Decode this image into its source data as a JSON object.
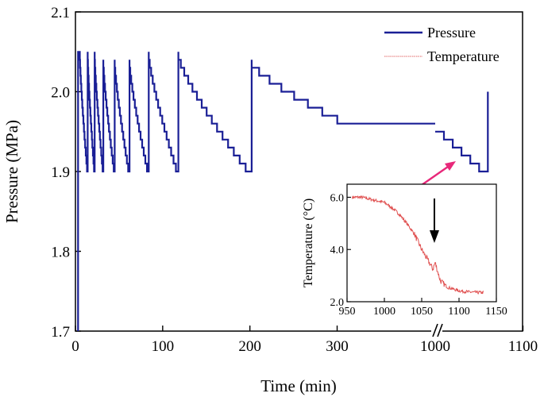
{
  "chart_data": [
    {
      "type": "line",
      "title": "",
      "xlabel": "Time (min)",
      "ylabel": "Pressure (MPa)",
      "xlim": [
        0,
        1100
      ],
      "ylim": [
        1.7,
        2.1
      ],
      "x_axis_break": "between 320 and 1000 (broken axis)",
      "x_ticks": [
        {
          "value": 0,
          "label": "0"
        },
        {
          "value": 100,
          "label": "100"
        },
        {
          "value": 200,
          "label": "200"
        },
        {
          "value": 300,
          "label": "300"
        },
        {
          "value": 1000,
          "label": "1000"
        },
        {
          "value": 1100,
          "label": "1100"
        }
      ],
      "y_ticks": [
        {
          "value": 1.7,
          "label": "1.7"
        },
        {
          "value": 1.8,
          "label": "1.8"
        },
        {
          "value": 1.9,
          "label": "1.9"
        },
        {
          "value": 2.0,
          "label": "2.0"
        },
        {
          "value": 2.1,
          "label": "2.1"
        }
      ],
      "legend": [
        {
          "label": "Pressure",
          "color": "#1a1f96",
          "style": "solid"
        },
        {
          "label": "Temperature",
          "color": "#e06060",
          "style": "dotted"
        }
      ],
      "series": [
        {
          "name": "Pressure",
          "color": "#1a1f96",
          "cycles": [
            {
              "start": 5,
              "end": 14,
              "peak": 2.05,
              "floor": 1.9
            },
            {
              "start": 14,
              "end": 22,
              "peak": 2.05,
              "floor": 1.9
            },
            {
              "start": 22,
              "end": 32,
              "peak": 2.05,
              "floor": 1.9
            },
            {
              "start": 32,
              "end": 45,
              "peak": 2.04,
              "floor": 1.9
            },
            {
              "start": 45,
              "end": 62,
              "peak": 2.04,
              "floor": 1.9
            },
            {
              "start": 62,
              "end": 84,
              "peak": 2.04,
              "floor": 1.9
            },
            {
              "start": 84,
              "end": 118,
              "peak": 2.05,
              "floor": 1.9
            },
            {
              "start": 118,
              "end": 202,
              "peak": 2.05,
              "floor": 1.9
            },
            {
              "start": 202,
              "end": 318,
              "peak": 2.04,
              "floor": 1.96
            }
          ],
          "late_segment": {
            "start": 1000,
            "end": 1060,
            "levels": [
              1.95,
              1.94,
              1.93,
              1.92,
              1.91,
              1.9
            ],
            "final_peak": 2.0
          }
        }
      ]
    },
    {
      "type": "line",
      "title": "",
      "xlabel": "",
      "ylabel": "Temperature (°C)",
      "xlim": [
        950,
        1150
      ],
      "ylim": [
        2.0,
        6.5
      ],
      "x_ticks": [
        {
          "value": 950,
          "label": "950"
        },
        {
          "value": 1000,
          "label": "1000"
        },
        {
          "value": 1050,
          "label": "1050"
        },
        {
          "value": 1100,
          "label": "1100"
        },
        {
          "value": 1150,
          "label": "1150"
        }
      ],
      "y_ticks": [
        {
          "value": 2.0,
          "label": "2.0"
        },
        {
          "value": 4.0,
          "label": "4.0"
        },
        {
          "value": 6.0,
          "label": "6.0"
        }
      ],
      "series": [
        {
          "name": "Temperature",
          "color": "#e06060",
          "x": [
            957,
            970,
            985,
            1000,
            1010,
            1020,
            1030,
            1040,
            1050,
            1060,
            1065,
            1068,
            1075,
            1085,
            1100,
            1110,
            1120,
            1133
          ],
          "y": [
            6.0,
            6.0,
            5.9,
            5.8,
            5.6,
            5.35,
            5.0,
            4.6,
            4.0,
            3.5,
            3.25,
            3.5,
            2.8,
            2.55,
            2.42,
            2.38,
            2.36,
            2.35
          ]
        }
      ],
      "annotation": {
        "type": "arrow",
        "x": 1067,
        "color": "#000000"
      }
    }
  ]
}
